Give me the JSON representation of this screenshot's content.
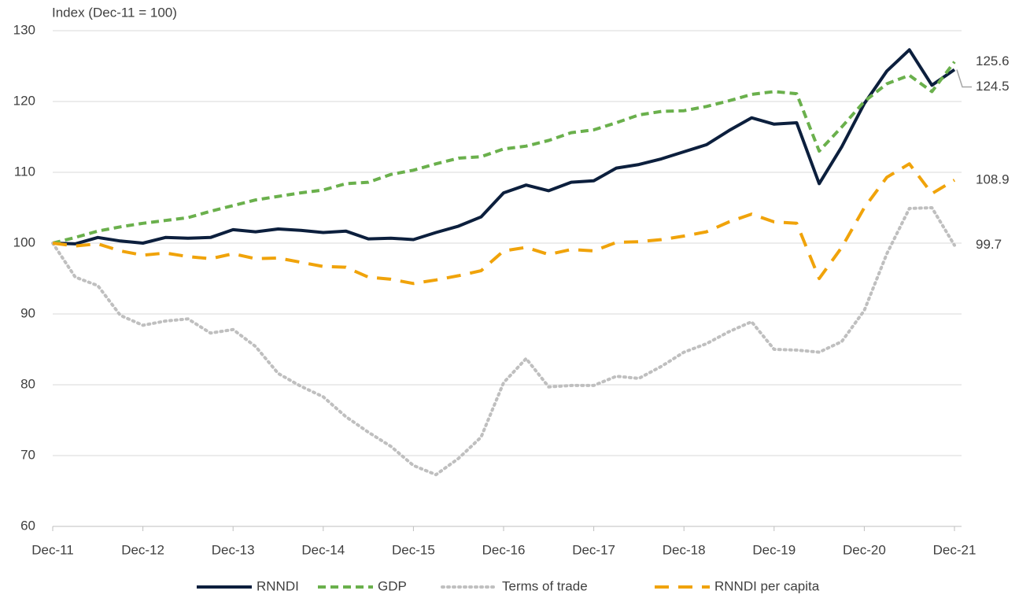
{
  "chart_data": {
    "type": "line",
    "y_label": "Index (Dec-11 = 100)",
    "categories": [
      "Dec-11",
      null,
      null,
      null,
      "Dec-12",
      null,
      null,
      null,
      "Dec-13",
      null,
      null,
      null,
      "Dec-14",
      null,
      null,
      null,
      "Dec-15",
      null,
      null,
      null,
      "Dec-16",
      null,
      null,
      null,
      "Dec-17",
      null,
      null,
      null,
      "Dec-18",
      null,
      null,
      null,
      "Dec-19",
      null,
      null,
      null,
      "Dec-20",
      null,
      null,
      null,
      "Dec-21"
    ],
    "series": [
      {
        "name": "RNNDI",
        "color": "#0c1f3d",
        "dash": "solid",
        "values": [
          100,
          99.9,
          100.8,
          100.3,
          100.0,
          100.8,
          100.7,
          100.8,
          101.9,
          101.6,
          102.0,
          101.8,
          101.5,
          101.7,
          100.6,
          100.7,
          100.5,
          101.5,
          102.4,
          103.7,
          107.1,
          108.2,
          107.4,
          108.6,
          108.8,
          110.6,
          111.1,
          111.9,
          112.9,
          113.9,
          115.9,
          117.7,
          116.8,
          117.0,
          108.4,
          113.6,
          119.7,
          124.3,
          127.3,
          122.3,
          124.5
        ]
      },
      {
        "name": "GDP",
        "color": "#6ab04c",
        "dash": "dash",
        "values": [
          100,
          100.8,
          101.7,
          102.3,
          102.8,
          103.2,
          103.6,
          104.5,
          105.3,
          106.1,
          106.6,
          107.1,
          107.5,
          108.4,
          108.6,
          109.7,
          110.3,
          111.2,
          112.0,
          112.2,
          113.3,
          113.7,
          114.5,
          115.6,
          116.0,
          117.0,
          118.1,
          118.6,
          118.7,
          119.3,
          120.1,
          121.0,
          121.4,
          121.1,
          113.0,
          116.4,
          120.0,
          122.5,
          123.7,
          121.4,
          125.6
        ]
      },
      {
        "name": "Terms of trade",
        "color": "#bfbfbf",
        "dash": "dot",
        "values": [
          100,
          95.2,
          94.0,
          89.8,
          88.4,
          89.0,
          89.3,
          87.3,
          87.8,
          85.4,
          81.6,
          79.8,
          78.3,
          75.5,
          73.3,
          71.3,
          68.6,
          67.3,
          69.6,
          72.6,
          80.3,
          83.7,
          79.7,
          79.9,
          79.9,
          81.2,
          80.9,
          82.6,
          84.6,
          85.8,
          87.5,
          88.9,
          85.0,
          84.9,
          84.6,
          86.1,
          90.5,
          98.5,
          104.9,
          105.0,
          99.7
        ]
      },
      {
        "name": "RNNDI per capita",
        "color": "#f0a30a",
        "dash": "longdash",
        "values": [
          100,
          99.6,
          99.9,
          98.9,
          98.3,
          98.6,
          98.1,
          97.8,
          98.5,
          97.8,
          97.9,
          97.3,
          96.7,
          96.6,
          95.2,
          94.9,
          94.3,
          94.8,
          95.4,
          96.1,
          98.9,
          99.4,
          98.4,
          99.1,
          98.9,
          100.1,
          100.2,
          100.5,
          101.0,
          101.6,
          103.0,
          104.1,
          103.0,
          102.8,
          95.0,
          99.4,
          105.0,
          109.3,
          111.2,
          107.0,
          108.9
        ]
      }
    ],
    "ylim": [
      60,
      130
    ],
    "yticks": [
      60,
      70,
      80,
      90,
      100,
      110,
      120,
      130
    ],
    "grid": true,
    "legend": "bottom"
  }
}
